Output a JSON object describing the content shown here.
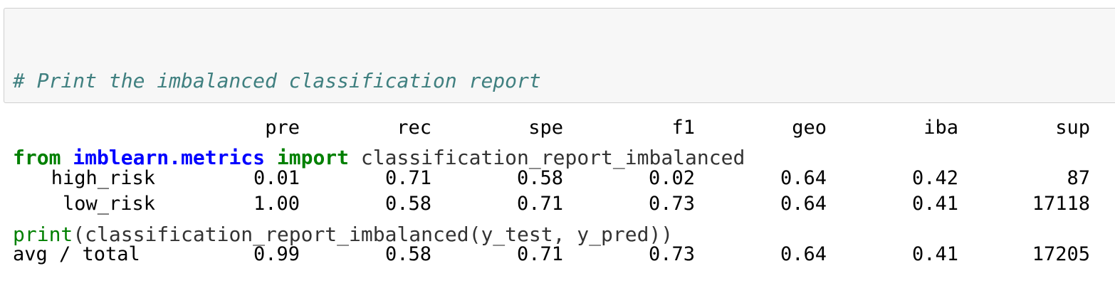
{
  "code_cell": {
    "comment": "# Print the imbalanced classification report",
    "line2": {
      "kw_from": "from",
      "module": "imblearn.metrics",
      "kw_import": "import",
      "name": " classification_report_imbalanced"
    },
    "line3": {
      "builtin": "print",
      "rest": "(classification_report_imbalanced(y_test, y_pred))"
    }
  },
  "report": {
    "headers": [
      "pre",
      "rec",
      "spe",
      "f1",
      "geo",
      "iba",
      "sup"
    ],
    "rows": [
      {
        "label": "high_risk",
        "values": [
          "0.01",
          "0.71",
          "0.58",
          "0.02",
          "0.64",
          "0.42",
          "87"
        ]
      },
      {
        "label": "low_risk",
        "values": [
          "1.00",
          "0.58",
          "0.71",
          "0.73",
          "0.64",
          "0.41",
          "17118"
        ]
      }
    ],
    "total": {
      "label": "avg / total",
      "values": [
        "0.99",
        "0.58",
        "0.71",
        "0.73",
        "0.64",
        "0.41",
        "17205"
      ]
    }
  }
}
